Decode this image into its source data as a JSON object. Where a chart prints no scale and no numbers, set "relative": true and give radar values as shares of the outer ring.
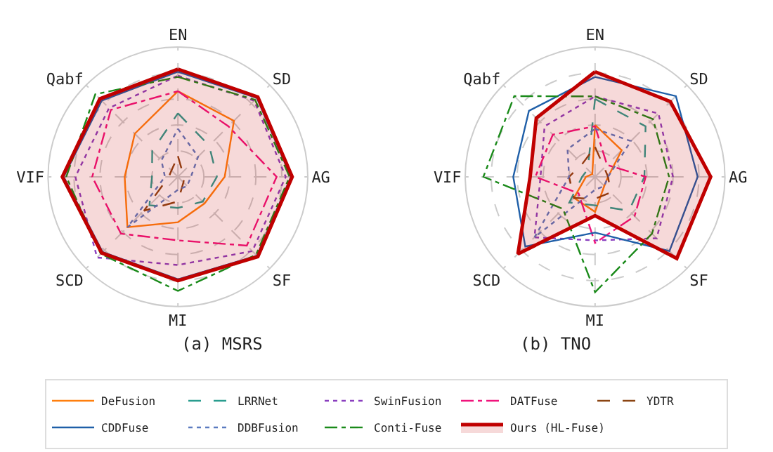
{
  "chart_data": [
    {
      "type": "radar",
      "title": "(a) MSRS",
      "relative": true,
      "grid": true,
      "legend": "bottom",
      "categories": [
        "EN",
        "SD",
        "AG",
        "SF",
        "MI",
        "SCD",
        "VIF",
        "Qabf"
      ],
      "series": [
        {
          "name": "DeFusion",
          "color": "#ff7f0e",
          "line_style": "solid",
          "values": [
            0.66,
            0.61,
            0.36,
            0.29,
            0.35,
            0.55,
            0.41,
            0.47
          ]
        },
        {
          "name": "LRRNet",
          "color": "#2a9d8f",
          "line_style": "dashed",
          "values": [
            0.49,
            0.34,
            0.3,
            0.27,
            0.24,
            0.31,
            0.2,
            0.28
          ]
        },
        {
          "name": "SwinFusion",
          "color": "#8a3fbf",
          "line_style": "dotted",
          "values": [
            0.78,
            0.83,
            0.83,
            0.81,
            0.68,
            0.88,
            0.79,
            0.75
          ]
        },
        {
          "name": "DATFuse",
          "color": "#f0147c",
          "line_style": "dashdot",
          "values": [
            0.66,
            0.55,
            0.76,
            0.75,
            0.49,
            0.62,
            0.66,
            0.73
          ]
        },
        {
          "name": "YDTR",
          "color": "#8b4513",
          "line_style": "dashed",
          "values": [
            0.16,
            0.05,
            0.05,
            0.06,
            0.19,
            0.37,
            0.07,
            0.07
          ]
        },
        {
          "name": "CDDFuse",
          "color": "#1f5fa8",
          "line_style": "solid",
          "values": [
            0.81,
            0.86,
            0.87,
            0.86,
            0.79,
            0.82,
            0.88,
            0.83
          ]
        },
        {
          "name": "DDBFusion",
          "color": "#5b7bc0",
          "line_style": "dotted",
          "values": [
            0.37,
            0.22,
            0.1,
            0.1,
            0.1,
            0.55,
            0.1,
            0.18
          ]
        },
        {
          "name": "Conti-Fuse",
          "color": "#1a8a1a",
          "line_style": "dashdot",
          "values": [
            0.77,
            0.84,
            0.86,
            0.85,
            0.88,
            0.84,
            0.86,
            0.9
          ]
        },
        {
          "name": "Ours (HL-Fuse)",
          "color": "#c00000",
          "line_style": "solid",
          "type": "area",
          "values": [
            0.83,
            0.87,
            0.88,
            0.87,
            0.8,
            0.83,
            0.89,
            0.85
          ]
        }
      ]
    },
    {
      "type": "radar",
      "title": "(b) TNO",
      "relative": true,
      "grid": true,
      "categories": [
        "EN",
        "SD",
        "AG",
        "SF",
        "MI",
        "SCD",
        "VIF",
        "Qabf"
      ],
      "series": [
        {
          "color": "#ff7f0e",
          "line_style": "solid",
          "values": [
            0.4,
            0.29,
            0.1,
            0.1,
            0.27,
            0.23,
            0.07,
            0.03
          ]
        },
        {
          "color": "#2a9d8f",
          "line_style": "dashed",
          "values": [
            0.6,
            0.55,
            0.38,
            0.37,
            0.22,
            0.28,
            0.1,
            0.08
          ]
        },
        {
          "color": "#8a3fbf",
          "line_style": "dotted",
          "values": [
            0.62,
            0.69,
            0.6,
            0.67,
            0.49,
            0.66,
            0.42,
            0.55
          ]
        },
        {
          "color": "#f0147c",
          "line_style": "dashdot",
          "values": [
            0.39,
            0.13,
            0.39,
            0.43,
            0.51,
            0.18,
            0.46,
            0.46
          ]
        },
        {
          "color": "#8b4513",
          "line_style": "dashed",
          "values": [
            0.23,
            0.1,
            0.1,
            0.17,
            0.17,
            0.23,
            0.2,
            0.14
          ]
        },
        {
          "color": "#1f5fa8",
          "line_style": "solid",
          "values": [
            0.77,
            0.88,
            0.79,
            0.81,
            0.43,
            0.76,
            0.63,
            0.72
          ]
        },
        {
          "color": "#5b7bc0",
          "line_style": "dotted",
          "values": [
            0.37,
            0.39,
            0.1,
            0.1,
            0.1,
            0.66,
            0.2,
            0.3
          ]
        },
        {
          "color": "#1a8a1a",
          "line_style": "dashdot",
          "values": [
            0.62,
            0.63,
            0.57,
            0.62,
            0.89,
            0.35,
            0.86,
            0.88
          ]
        },
        {
          "color": "#c00000",
          "line_style": "solid",
          "type": "area",
          "values": [
            0.81,
            0.82,
            0.89,
            0.89,
            0.3,
            0.84,
            0.5,
            0.64
          ]
        }
      ]
    }
  ]
}
